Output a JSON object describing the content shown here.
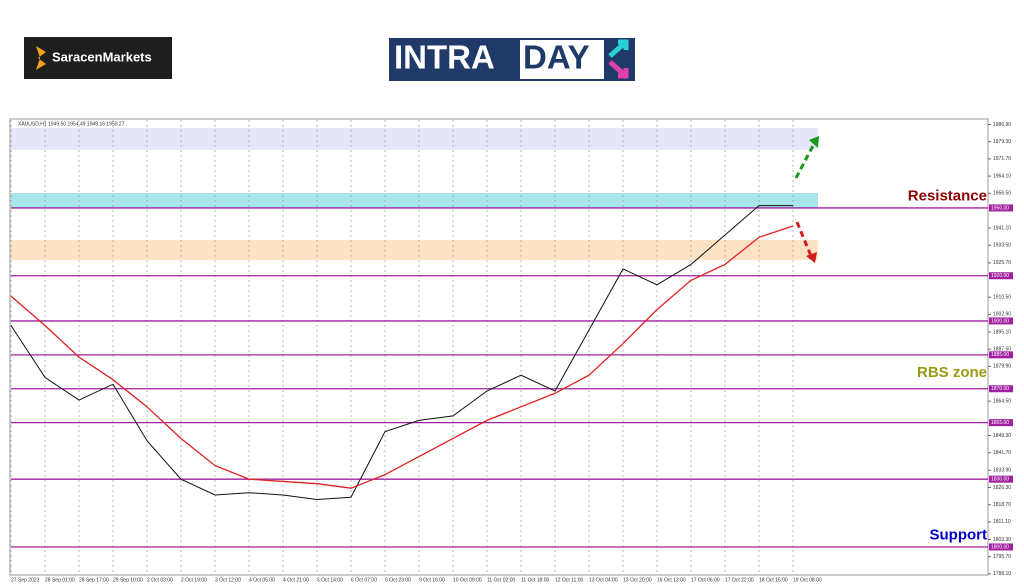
{
  "brand": {
    "left": "SaracenMarkets",
    "intra": "INTRA",
    "day": "DAY"
  },
  "chart_data": {
    "type": "line",
    "header": "XAUUSD,H1  1949.50 1954.49 1949.16 1950.27",
    "categories": [
      "27 Sep 2023",
      "28 Sep 01:00",
      "28 Sep 17:00",
      "29 Sep 10:00",
      "2 Oct 03:00",
      "2 Oct 19:00",
      "3 Oct 12:00",
      "4 Oct 05:00",
      "4 Oct 21:00",
      "5 Oct 14:00",
      "6 Oct 07:00",
      "6 Oct 23:00",
      "9 Oct 16:00",
      "10 Oct 09:00",
      "11 Oct 02:00",
      "11 Oct 18:00",
      "12 Oct 11:00",
      "13 Oct 04:00",
      "13 Oct 20:00",
      "16 Oct 13:00",
      "17 Oct 06:00",
      "17 Oct 22:00",
      "18 Oct 15:00",
      "19 Oct 08:00"
    ],
    "series": [
      {
        "name": "Price",
        "color": "#111111",
        "values": [
          1898,
          1875,
          1865,
          1872,
          1847,
          1830,
          1823,
          1824,
          1823,
          1821,
          1822,
          1851,
          1856,
          1858,
          1869,
          1876,
          1869,
          1896,
          1923,
          1916,
          1925,
          1938,
          1951,
          1951
        ]
      },
      {
        "name": "Moving Average",
        "color": "#e02020",
        "values": [
          1911,
          1898,
          1884,
          1874,
          1862,
          1848,
          1836,
          1830,
          1829,
          1828,
          1826,
          1832,
          1840,
          1848,
          1856,
          1862,
          1868,
          1876,
          1890,
          1905,
          1918,
          1925,
          1937,
          1942
        ]
      }
    ],
    "ylim": [
      1787.6,
      1988.9
    ],
    "yticks": [
      {
        "value": 1986.9,
        "label": "1986.90"
      },
      {
        "value": 1979.3,
        "label": "1979.30"
      },
      {
        "value": 1971.7,
        "label": "1971.70"
      },
      {
        "value": 1964.1,
        "label": "1964.10"
      },
      {
        "value": 1956.5,
        "label": "1956.50"
      },
      {
        "value": 1941.1,
        "label": "1941.10"
      },
      {
        "value": 1933.5,
        "label": "1933.50"
      },
      {
        "value": 1925.7,
        "label": "1925.70"
      },
      {
        "value": 1910.5,
        "label": "1910.50"
      },
      {
        "value": 1902.9,
        "label": "1902.90"
      },
      {
        "value": 1895.1,
        "label": "1895.10"
      },
      {
        "value": 1887.5,
        "label": "1887.50"
      },
      {
        "value": 1879.9,
        "label": "1879.90"
      },
      {
        "value": 1864.5,
        "label": "1864.50"
      },
      {
        "value": 1849.3,
        "label": "1849.30"
      },
      {
        "value": 1841.7,
        "label": "1841.70"
      },
      {
        "value": 1833.9,
        "label": "1833.90"
      },
      {
        "value": 1826.3,
        "label": "1826.30"
      },
      {
        "value": 1818.7,
        "label": "1818.70"
      },
      {
        "value": 1811.1,
        "label": "1811.10"
      },
      {
        "value": 1803.3,
        "label": "1803.30"
      },
      {
        "value": 1795.7,
        "label": "1795.70"
      },
      {
        "value": 1788.1,
        "label": "1788.10"
      }
    ],
    "levels": [
      {
        "value": 1950,
        "label": "1950.00"
      },
      {
        "value": 1920,
        "label": "1920.00"
      },
      {
        "value": 1900,
        "label": "1900.00"
      },
      {
        "value": 1885,
        "label": "1885.00"
      },
      {
        "value": 1870,
        "label": "1870.00"
      },
      {
        "value": 1855,
        "label": "1855.00"
      },
      {
        "value": 1830,
        "label": "1830.00"
      },
      {
        "value": 1800,
        "label": "1800.00"
      }
    ],
    "level_color": "#a020a0",
    "zones": [
      {
        "from": 1975.7,
        "to": 1985.4,
        "color": "#e6e6fa"
      },
      {
        "from": 1950,
        "to": 1956.6,
        "color": "#a8e6ec"
      },
      {
        "from": 1927,
        "to": 1935.8,
        "color": "#fde3c4"
      }
    ],
    "annotations": [
      {
        "text": "Resistance",
        "at": 1955,
        "color": "#8b0000"
      },
      {
        "text": "RBS zone",
        "at": 1877,
        "color": "#9a9a10"
      },
      {
        "text": "Support",
        "at": 1805,
        "color": "#0000cc"
      }
    ],
    "grid": true
  }
}
